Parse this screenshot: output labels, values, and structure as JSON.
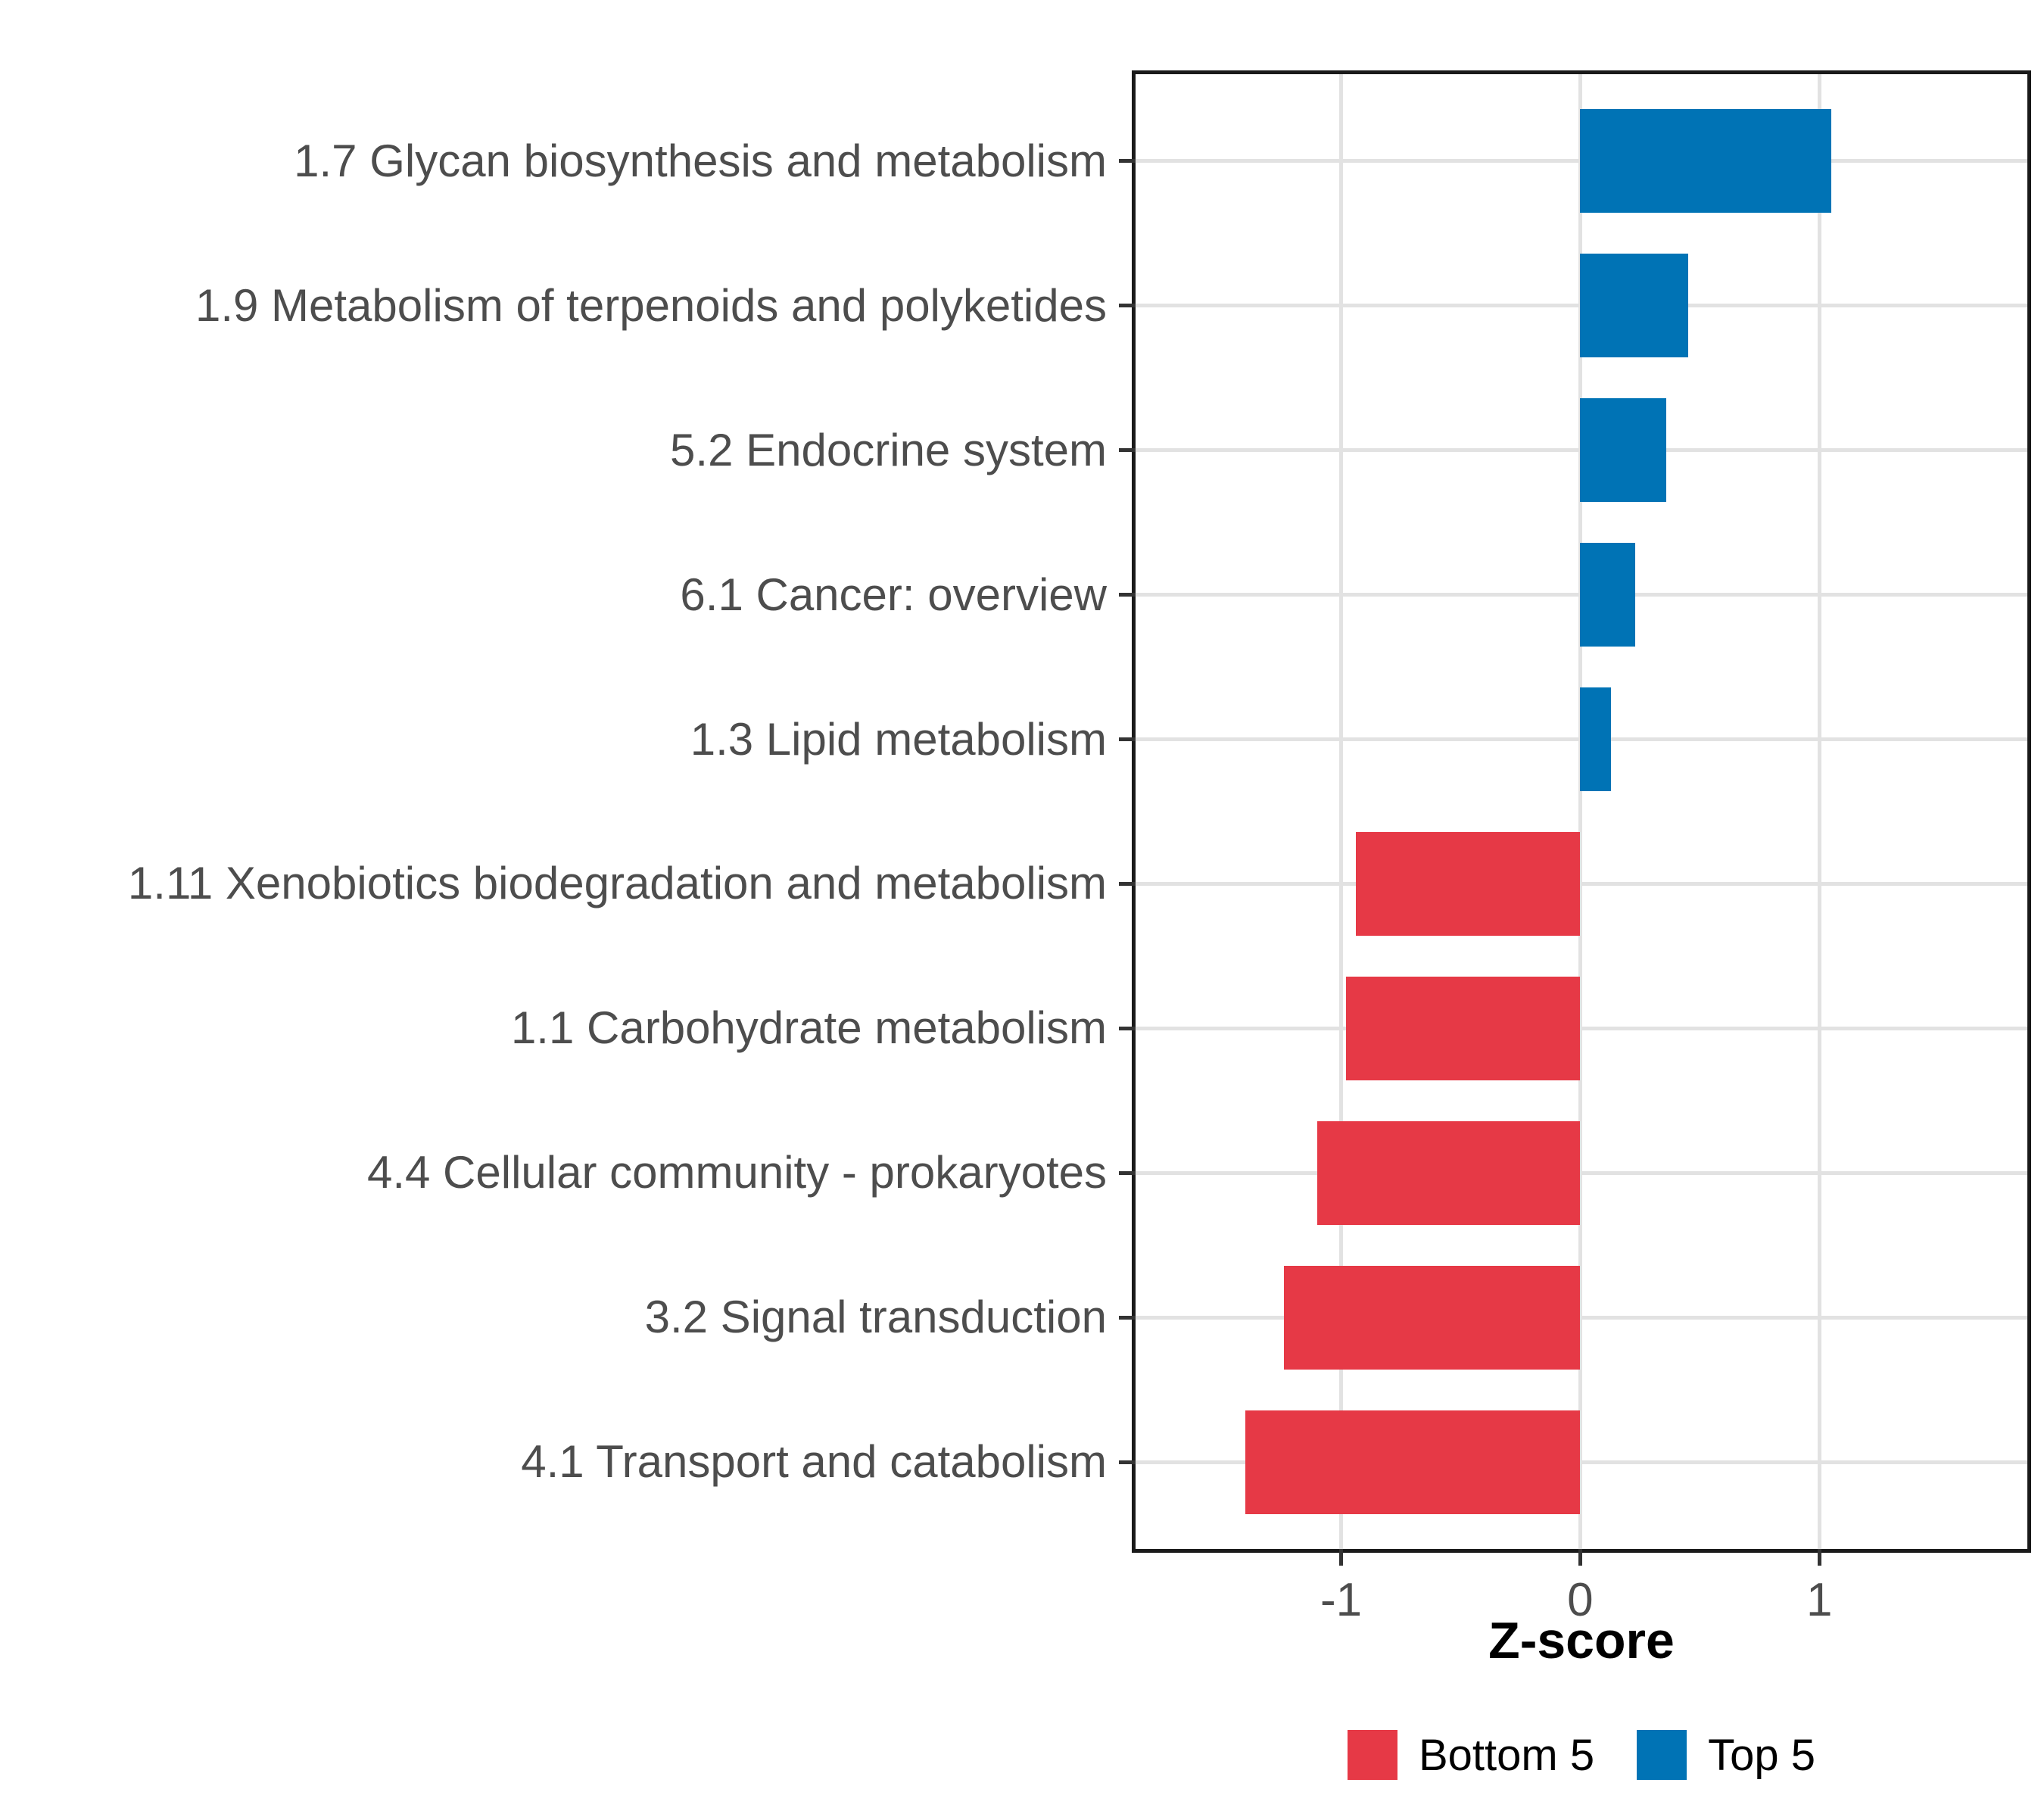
{
  "chart_data": {
    "type": "bar",
    "orientation": "horizontal",
    "title": "",
    "xlabel": "Z-score",
    "ylabel": "",
    "categories": [
      "1.7 Glycan biosynthesis and metabolism",
      "1.9 Metabolism of terpenoids and polyketides",
      "5.2 Endocrine system",
      "6.1 Cancer: overview",
      "1.3 Lipid metabolism",
      "1.11 Xenobiotics biodegradation and metabolism",
      "1.1 Carbohydrate metabolism",
      "4.4 Cellular community - prokaryotes",
      "3.2 Signal transduction",
      "4.1 Transport and catabolism"
    ],
    "values": [
      1.05,
      0.45,
      0.36,
      0.23,
      0.13,
      -0.94,
      -0.98,
      -1.1,
      -1.24,
      -1.4
    ],
    "groups": [
      "Top 5",
      "Top 5",
      "Top 5",
      "Top 5",
      "Top 5",
      "Bottom 5",
      "Bottom 5",
      "Bottom 5",
      "Bottom 5",
      "Bottom 5"
    ],
    "group_colors": {
      "Bottom 5": "#E63946",
      "Top 5": "#0073B5"
    },
    "xlim": [
      -1.86,
      1.87
    ],
    "x_ticks": [
      -1,
      0,
      1
    ],
    "x_tick_labels": [
      "-1",
      "0",
      "1"
    ],
    "grid": "major-only",
    "bar_width_fraction": 0.72,
    "panel": {
      "background": "#FFFFFF",
      "border_color": "#1A1A1A",
      "gridline_color": "#E2E2E2"
    },
    "axis_text_color": "#4D4D4D",
    "legend": {
      "position": "bottom",
      "entries": [
        {
          "label": "Bottom 5",
          "color": "#E63946"
        },
        {
          "label": "Top 5",
          "color": "#0073B5"
        }
      ]
    }
  }
}
